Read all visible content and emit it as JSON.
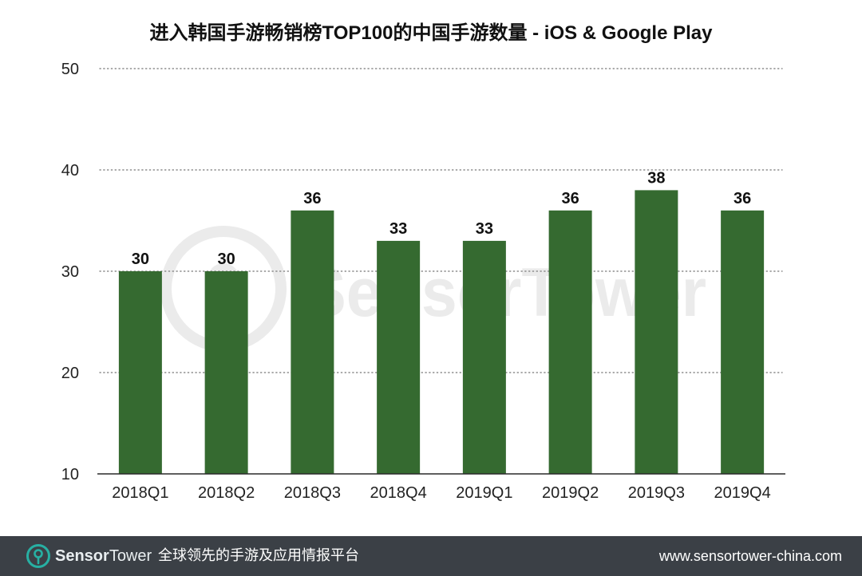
{
  "chart_data": {
    "type": "bar",
    "title": "进入韩国手游畅销榜TOP100的中国手游数量 - iOS & Google Play",
    "categories": [
      "2018Q1",
      "2018Q2",
      "2018Q3",
      "2018Q4",
      "2019Q1",
      "2019Q2",
      "2019Q3",
      "2019Q4"
    ],
    "values": [
      30,
      30,
      36,
      33,
      33,
      36,
      38,
      36
    ],
    "yticks": [
      10,
      20,
      30,
      40,
      50
    ],
    "ylim": [
      10,
      50
    ],
    "xlabel": "",
    "ylabel": "",
    "grid": true,
    "bar_color": "#356a30"
  },
  "watermark": {
    "text": "SensorTower"
  },
  "footer": {
    "logo_icon": "sensortower-logo-icon",
    "brand": [
      "Sensor",
      "Tower"
    ],
    "tagline": "全球领先的手游及应用情报平台",
    "url": "www.sensortower-china.com",
    "background_color": "#3b4046",
    "accent_color": "#27b0a3"
  }
}
